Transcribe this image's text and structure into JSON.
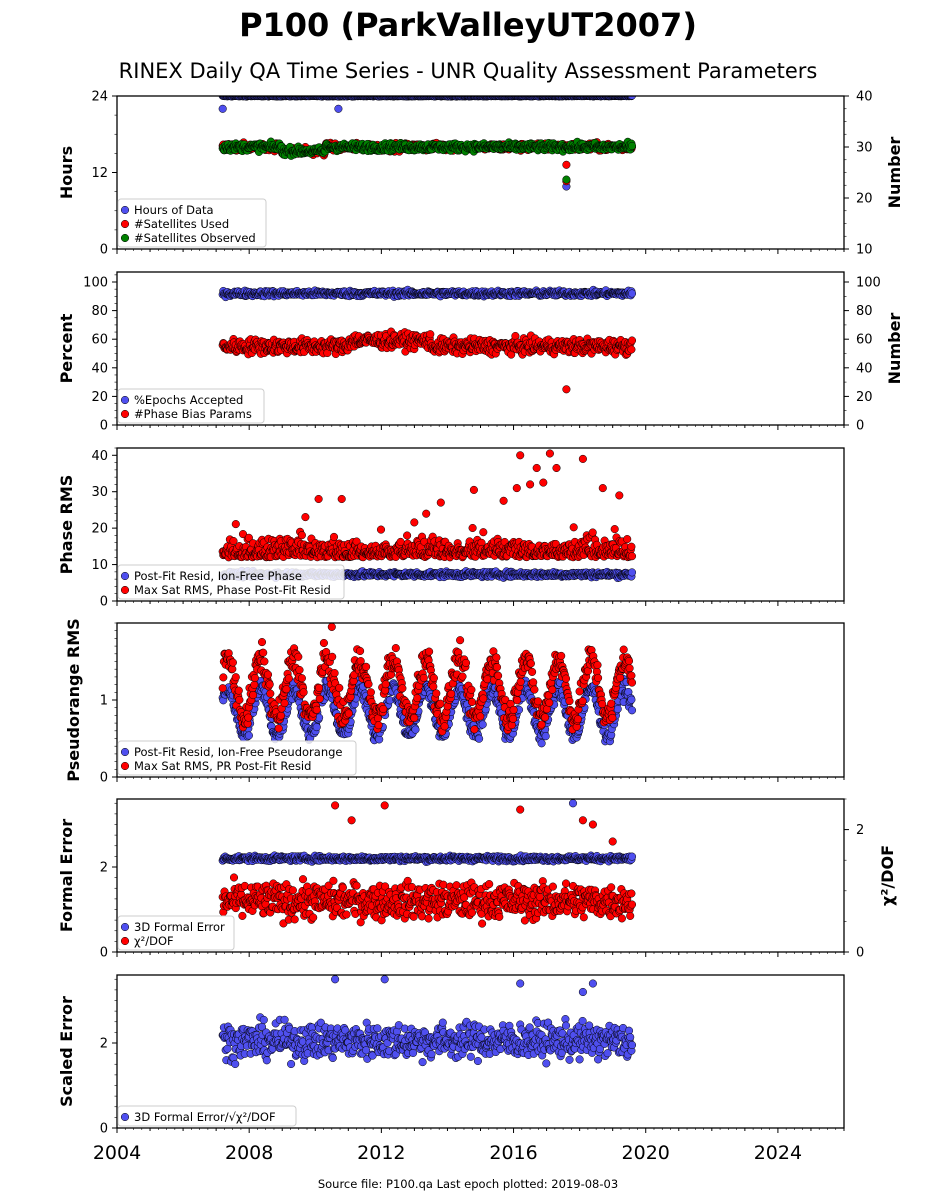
{
  "title": "P100 (ParkValleyUT2007)",
  "subtitle": "RINEX Daily QA Time Series - UNR Quality Assessment Parameters",
  "footer": "Source file: P100.qa Last epoch plotted: 2019-08-03",
  "colors": {
    "blue": "#4f4fef",
    "red": "#ff0000",
    "green": "#008000"
  },
  "chart_data": [
    {
      "type": "scatter",
      "ylabel": "Hours",
      "ylabel_right": "Number",
      "x_range": [
        2004,
        2026
      ],
      "x_ticks": [
        "2004",
        "2008",
        "2012",
        "2016",
        "2020",
        "2024"
      ],
      "ylim": [
        0,
        24
      ],
      "y_ticks": [
        "0",
        "12",
        "24"
      ],
      "ylim_right": [
        10,
        40
      ],
      "y_ticks_right": [
        "10",
        "20",
        "30",
        "40"
      ],
      "legend_position": "lower-left",
      "series": [
        {
          "name": "Hours of Data",
          "color": "#4f4fef",
          "axis": "left",
          "typical": 24,
          "range": [
            2007.2,
            2019.6
          ],
          "outliers": [
            [
              2007.2,
              22
            ],
            [
              2010.7,
              22
            ],
            [
              2017.6,
              9.8
            ]
          ]
        },
        {
          "name": "#Satellites Used",
          "color": "#ff0000",
          "axis": "right",
          "typical": 30,
          "range": [
            2007.2,
            2019.6
          ],
          "outliers": [
            [
              2009.7,
              30
            ],
            [
              2017.6,
              26.5
            ],
            [
              2017.6,
              23.3
            ]
          ]
        },
        {
          "name": "#Satellites Observed",
          "color": "#008000",
          "axis": "right",
          "typical": 30,
          "range": [
            2007.2,
            2019.6
          ],
          "outliers": [
            [
              2017.6,
              23.6
            ]
          ]
        }
      ]
    },
    {
      "type": "scatter",
      "ylabel": "Percent",
      "ylabel_right": "Number",
      "ylim": [
        0,
        107
      ],
      "y_ticks": [
        "0",
        "20",
        "40",
        "60",
        "80",
        "100"
      ],
      "y_ticks_right": [
        "0",
        "20",
        "40",
        "60",
        "80",
        "100"
      ],
      "legend_position": "lower-left",
      "series": [
        {
          "name": "%Epochs Accepted",
          "color": "#4f4fef",
          "typical": 92,
          "range": [
            2007.2,
            2019.6
          ]
        },
        {
          "name": "#Phase Bias Params",
          "color": "#ff0000",
          "typical": 55,
          "range": [
            2007.2,
            2019.6
          ],
          "outliers": [
            [
              2017.6,
              25
            ]
          ]
        }
      ]
    },
    {
      "type": "scatter",
      "ylabel": "Phase RMS",
      "ylim": [
        0,
        42
      ],
      "y_ticks": [
        "0",
        "10",
        "20",
        "30",
        "40"
      ],
      "legend_position": "lower-left",
      "series": [
        {
          "name": "Post-Fit Resid, Ion-Free Phase",
          "color": "#4f4fef",
          "typical": 7.5,
          "range": [
            2007.2,
            2019.6
          ]
        },
        {
          "name": "Max Sat RMS, Phase Post-Fit Resid",
          "color": "#ff0000",
          "typical": 12,
          "range": [
            2007.2,
            2019.6
          ],
          "outliers": [
            [
              2010.1,
              28
            ],
            [
              2010.8,
              28
            ],
            [
              2013.8,
              27
            ],
            [
              2014.8,
              30.5
            ],
            [
              2015.7,
              27.5
            ],
            [
              2016.1,
              31
            ],
            [
              2016.2,
              40
            ],
            [
              2016.5,
              32
            ],
            [
              2016.7,
              36.5
            ],
            [
              2016.9,
              32.5
            ],
            [
              2017.1,
              40.5
            ],
            [
              2017.3,
              36.5
            ],
            [
              2018.1,
              39
            ],
            [
              2018.7,
              31
            ],
            [
              2019.2,
              29
            ]
          ]
        }
      ]
    },
    {
      "type": "scatter",
      "ylabel": "Pseudorange RMS",
      "ylim": [
        0,
        2.0
      ],
      "y_ticks": [
        "0",
        "1"
      ],
      "legend_position": "lower-left",
      "series": [
        {
          "name": "Post-Fit Resid, Ion-Free Pseudorange",
          "color": "#4f4fef",
          "typical": 0.85,
          "range": [
            2007.2,
            2019.6
          ]
        },
        {
          "name": "Max Sat RMS, PR Post-Fit Resid",
          "color": "#ff0000",
          "typical": 1.1,
          "range": [
            2007.2,
            2019.6
          ],
          "outliers": [
            [
              2010.5,
              1.95
            ]
          ]
        }
      ]
    },
    {
      "type": "scatter",
      "ylabel": "Formal Error",
      "ylabel_right": "χ²/DOF",
      "ylim": [
        0,
        3.6
      ],
      "y_ticks": [
        "0",
        "2"
      ],
      "y_ticks_right": [
        "0",
        "2"
      ],
      "legend_position": "lower-left",
      "series": [
        {
          "name": "3D Formal Error",
          "color": "#4f4fef",
          "typical": 2.2,
          "range": [
            2007.2,
            2019.6
          ],
          "outliers": [
            [
              2017.8,
              3.5
            ]
          ]
        },
        {
          "name": "χ²/DOF",
          "color": "#ff0000",
          "typical": 1.2,
          "range": [
            2007.2,
            2019.6
          ],
          "outliers": [
            [
              2010.6,
              3.45
            ],
            [
              2011.1,
              3.1
            ],
            [
              2012.1,
              3.45
            ],
            [
              2016.2,
              3.35
            ],
            [
              2018.1,
              3.1
            ],
            [
              2018.4,
              3.0
            ],
            [
              2019.0,
              2.6
            ]
          ]
        }
      ]
    },
    {
      "type": "scatter",
      "ylabel": "Scaled Error",
      "ylim": [
        0,
        3.6
      ],
      "y_ticks": [
        "0",
        "2"
      ],
      "legend_position": "lower-left",
      "series": [
        {
          "name": "3D Formal Error/√χ²/DOF",
          "color": "#4f4fef",
          "typical": 2.1,
          "range": [
            2007.2,
            2019.6
          ],
          "outliers": [
            [
              2010.6,
              3.5
            ],
            [
              2012.1,
              3.5
            ],
            [
              2016.2,
              3.4
            ],
            [
              2018.1,
              3.2
            ],
            [
              2018.4,
              3.4
            ]
          ]
        }
      ]
    }
  ]
}
